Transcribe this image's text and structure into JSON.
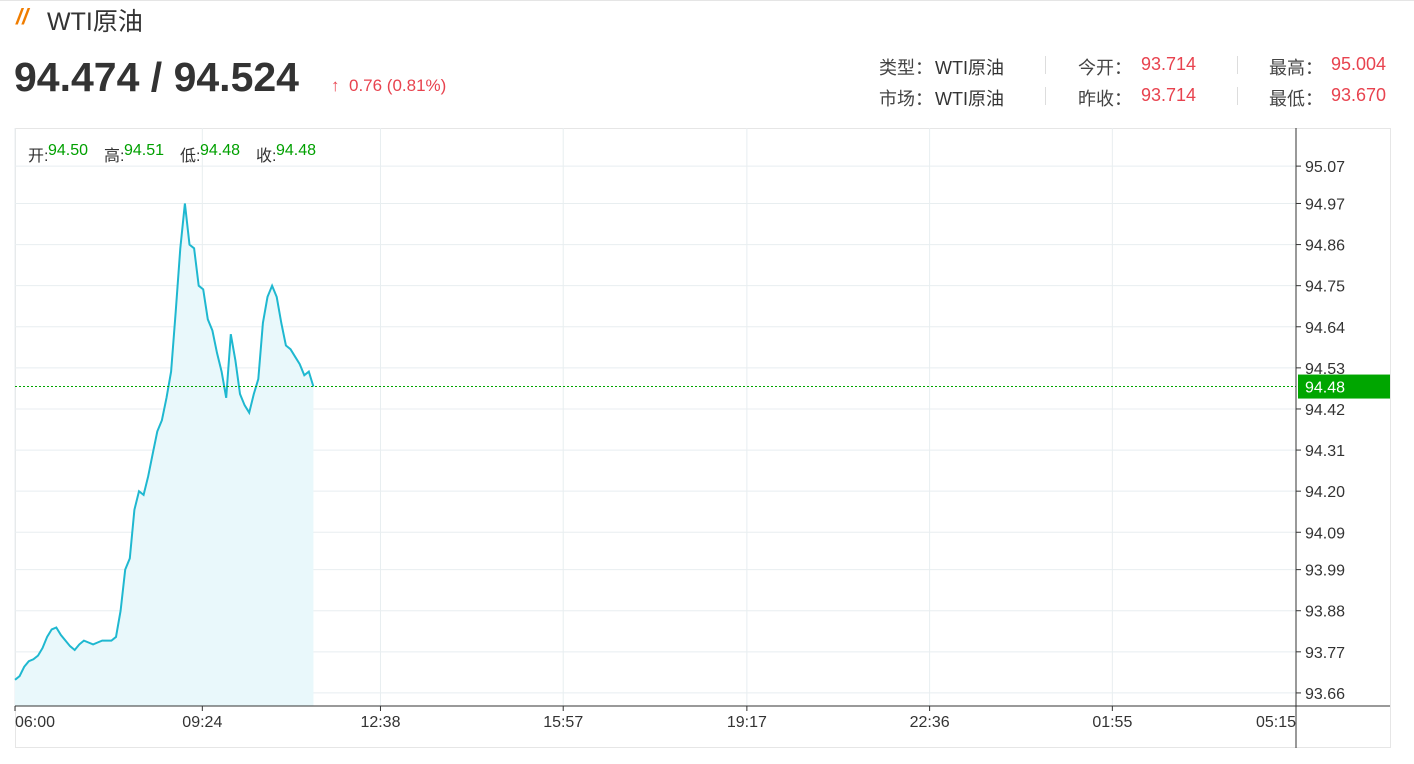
{
  "header": {
    "title": "WTI原油",
    "price": "94.474 / 94.524",
    "change": "0.76 (0.81%)",
    "info": [
      [
        {
          "label": "类型：",
          "value": "WTI原油"
        },
        {
          "label": "今开：",
          "value": "93.714"
        },
        {
          "label": "最高：",
          "value": "95.004"
        }
      ],
      [
        {
          "label": "市场：",
          "value": "WTI原油"
        },
        {
          "label": "昨收：",
          "value": "93.714"
        },
        {
          "label": "最低：",
          "value": "93.670"
        }
      ]
    ]
  },
  "ohlc": [
    {
      "label": "开:",
      "value": "94.50"
    },
    {
      "label": "高:",
      "value": "94.51"
    },
    {
      "label": "低:",
      "value": "94.48"
    },
    {
      "label": "收:",
      "value": "94.48"
    }
  ],
  "chart_data": {
    "type": "line",
    "x": [
      "06:00",
      "06:05",
      "06:10",
      "06:15",
      "06:20",
      "06:25",
      "06:30",
      "06:35",
      "06:40",
      "06:45",
      "06:50",
      "06:55",
      "07:00",
      "07:05",
      "07:10",
      "07:15",
      "07:20",
      "07:25",
      "07:30",
      "07:35",
      "07:40",
      "07:45",
      "07:50",
      "07:55",
      "08:00",
      "08:05",
      "08:10",
      "08:15",
      "08:20",
      "08:25",
      "08:30",
      "08:35",
      "08:40",
      "08:45",
      "08:50",
      "08:55",
      "09:00",
      "09:05",
      "09:10",
      "09:15",
      "09:20",
      "09:25",
      "09:30",
      "09:35",
      "09:40",
      "09:45",
      "09:50",
      "09:55",
      "10:00",
      "10:05",
      "10:10",
      "10:15",
      "10:20",
      "10:25",
      "10:30",
      "10:35",
      "10:40",
      "10:45",
      "10:50",
      "10:55",
      "11:00",
      "11:05",
      "11:10",
      "11:15",
      "11:20",
      "11:25"
    ],
    "series": [
      {
        "color": "#1fb8d0",
        "area_color": "#e9f8fb",
        "values": [
          93.695,
          93.705,
          93.73,
          93.745,
          93.75,
          93.76,
          93.78,
          93.81,
          93.83,
          93.835,
          93.815,
          93.8,
          93.785,
          93.775,
          93.79,
          93.8,
          93.795,
          93.79,
          93.795,
          93.8,
          93.8,
          93.8,
          93.81,
          93.88,
          93.99,
          94.02,
          94.15,
          94.2,
          94.19,
          94.24,
          94.3,
          94.36,
          94.39,
          94.45,
          94.52,
          94.68,
          94.85,
          94.97,
          94.86,
          94.85,
          94.75,
          94.74,
          94.66,
          94.63,
          94.57,
          94.52,
          94.45,
          94.62,
          94.55,
          94.46,
          94.43,
          94.41,
          94.46,
          94.5,
          94.65,
          94.72,
          94.75,
          94.72,
          94.65,
          94.59,
          94.58,
          94.56,
          94.54,
          94.51,
          94.52,
          94.48
        ]
      }
    ],
    "last_price": 94.48,
    "last_price_color": "#00a600",
    "xlim": [
      "06:00",
      "05:15"
    ],
    "xticks": [
      "06:00",
      "09:24",
      "12:38",
      "15:57",
      "19:17",
      "22:36",
      "01:55",
      "05:15"
    ],
    "ylim": [
      93.625,
      95.172
    ],
    "yticks": [
      95.07,
      94.97,
      94.86,
      94.75,
      94.64,
      94.53,
      94.42,
      94.31,
      {
        "value": 94.2,
        "label": "94.20"
      },
      94.09,
      93.99,
      93.88,
      93.77,
      93.66
    ],
    "grid": true
  }
}
